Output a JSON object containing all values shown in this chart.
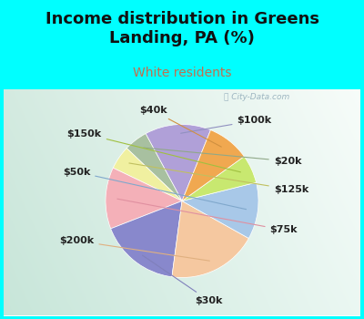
{
  "title": "Income distribution in Greens\nLanding, PA (%)",
  "subtitle": "White residents",
  "title_color": "#111111",
  "subtitle_color": "#c07050",
  "background_top": "#00ffff",
  "labels": [
    "$100k",
    "$20k",
    "$125k",
    "$75k",
    "$30k",
    "$200k",
    "$50k",
    "$150k",
    "$40k"
  ],
  "sizes": [
    14,
    5,
    5,
    13,
    17,
    19,
    12,
    6,
    9
  ],
  "colors": [
    "#b0a0d8",
    "#a8c0a0",
    "#f0f0a0",
    "#f4b0b8",
    "#8888cc",
    "#f5c8a0",
    "#a8c8e8",
    "#c8e870",
    "#f0a850"
  ],
  "watermark": "ⓘ City-Data.com",
  "label_fontsize": 8,
  "title_fontsize": 13,
  "subtitle_fontsize": 10,
  "startangle": 68,
  "label_color": "#222222"
}
